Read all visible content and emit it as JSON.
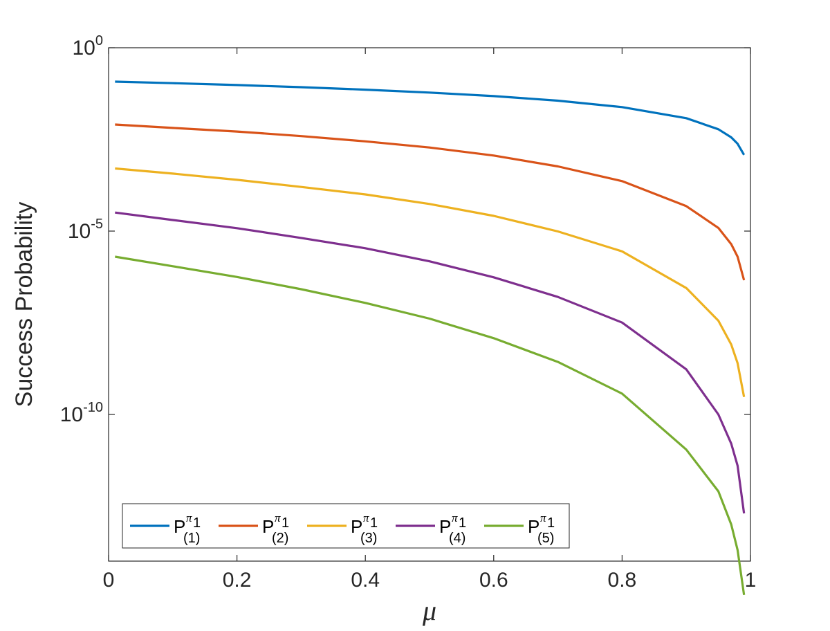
{
  "chart_data": {
    "type": "line",
    "xlabel": "μ",
    "ylabel": "Success Probability",
    "xlim": [
      0,
      1
    ],
    "ylim": [
      1e-14,
      1
    ],
    "yscale": "log",
    "grid": false,
    "legend_position": "bottom-left, horizontal",
    "x_ticks": [
      "0",
      "0.2",
      "0.4",
      "0.6",
      "0.8",
      "1"
    ],
    "y_ticks": [
      {
        "base": "10",
        "exp": "0"
      },
      {
        "base": "10",
        "exp": "-5"
      },
      {
        "base": "10",
        "exp": "-10"
      }
    ],
    "x": [
      0.01,
      0.1,
      0.2,
      0.3,
      0.4,
      0.5,
      0.6,
      0.7,
      0.8,
      0.9,
      0.95,
      0.97,
      0.98,
      0.99
    ],
    "series": [
      {
        "label": "P",
        "sup": "π",
        "sub": "1",
        "idx": "(1)",
        "color": "#0072BD",
        "values": [
          0.119,
          0.108,
          0.096,
          0.084,
          0.072,
          0.06,
          0.048,
          0.036,
          0.024,
          0.012,
          0.006,
          0.0036,
          0.0024,
          0.0012
        ]
      },
      {
        "label": "P",
        "sup": "π",
        "sub": "1",
        "idx": "(2)",
        "color": "#D95319",
        "values": [
          0.00804,
          0.0065,
          0.0052,
          0.0039,
          0.0028,
          0.0019,
          0.00115,
          0.00058,
          0.00023,
          4.8e-05,
          1.22e-05,
          4.4e-06,
          2e-06,
          4.6e-07
        ]
      },
      {
        "label": "P",
        "sup": "π",
        "sub": "1",
        "idx": "(3)",
        "color": "#EDB120",
        "values": [
          0.00051,
          0.00037,
          0.00025,
          0.00016,
          0.0001,
          5.5e-05,
          2.6e-05,
          9.8e-06,
          2.8e-06,
          2.8e-07,
          3.6e-08,
          8.1e-09,
          2.5e-09,
          3e-10
        ]
      },
      {
        "label": "P",
        "sup": "π",
        "sub": "1",
        "idx": "(4)",
        "color": "#7E2F8E",
        "values": [
          3.2e-05,
          2e-05,
          1.2e-05,
          6.5e-06,
          3.4e-06,
          1.5e-06,
          5.5e-07,
          1.6e-07,
          3.2e-08,
          1.7e-09,
          1e-10,
          1.6e-11,
          4e-12,
          2e-13
        ]
      },
      {
        "label": "P",
        "sup": "π",
        "sub": "1",
        "idx": "(5)",
        "color": "#77AC30",
        "values": [
          2e-06,
          1.1e-06,
          5.6e-07,
          2.6e-07,
          1.1e-07,
          4.1e-08,
          1.2e-08,
          2.7e-09,
          3.7e-10,
          1.1e-11,
          8e-13,
          1e-13,
          2e-14,
          1.2e-15
        ]
      }
    ]
  }
}
